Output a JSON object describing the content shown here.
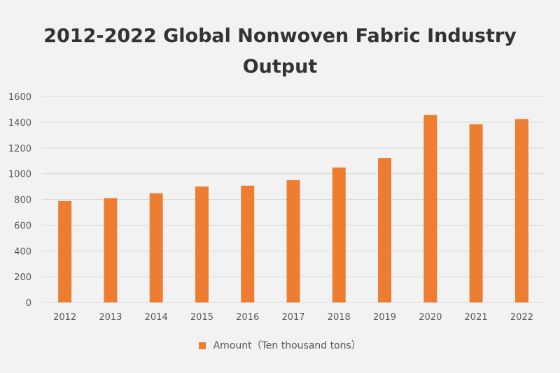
{
  "chart_data": {
    "type": "bar",
    "title": "2012-2022 Global Nonwoven Fabric Industry Output",
    "categories": [
      "2012",
      "2013",
      "2014",
      "2015",
      "2016",
      "2017",
      "2018",
      "2019",
      "2020",
      "2021",
      "2022"
    ],
    "series": [
      {
        "name": "Amount（Ten thousand tons）",
        "values": [
          787,
          810,
          848,
          900,
          907,
          950,
          1048,
          1122,
          1455,
          1383,
          1424
        ]
      }
    ],
    "yticks": [
      0,
      200,
      400,
      600,
      800,
      1000,
      1200,
      1400,
      1600
    ],
    "ylim": [
      0,
      1600
    ],
    "xlabel": "",
    "ylabel": "",
    "grid": true,
    "legend_position": "bottom",
    "colors": {
      "bar": "#ed7d31",
      "grid": "#d9d9d9",
      "axis_text": "#595959",
      "title": "#333333"
    }
  }
}
